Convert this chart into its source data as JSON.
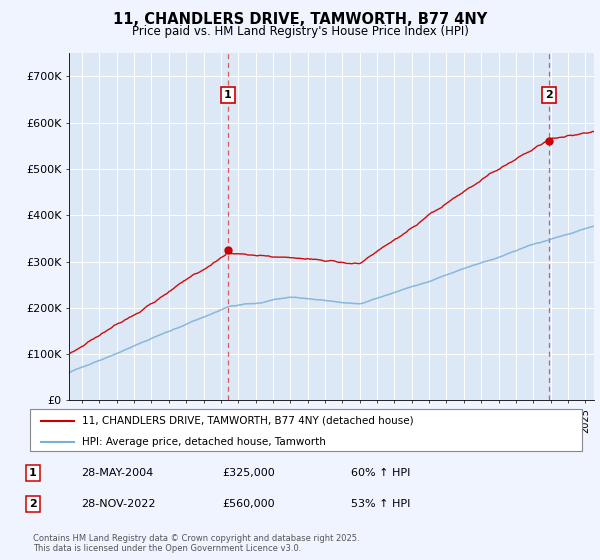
{
  "title": "11, CHANDLERS DRIVE, TAMWORTH, B77 4NY",
  "subtitle": "Price paid vs. HM Land Registry's House Price Index (HPI)",
  "ylabel_ticks": [
    "£0",
    "£100K",
    "£200K",
    "£300K",
    "£400K",
    "£500K",
    "£600K",
    "£700K"
  ],
  "ytick_vals": [
    0,
    100000,
    200000,
    300000,
    400000,
    500000,
    600000,
    700000
  ],
  "ylim": [
    0,
    750000
  ],
  "xlim_start": 1995.25,
  "xlim_end": 2025.5,
  "marker1_x": 2004.41,
  "marker1_y": 325000,
  "marker1_label": "1",
  "marker2_x": 2022.91,
  "marker2_y": 560000,
  "marker2_label": "2",
  "red_color": "#cc0000",
  "blue_color": "#7bafd4",
  "dashed_line_color": "#cc0000",
  "background_color": "#f0f4ff",
  "legend_line1": "11, CHANDLERS DRIVE, TAMWORTH, B77 4NY (detached house)",
  "legend_line2": "HPI: Average price, detached house, Tamworth",
  "table_row1": [
    "1",
    "28-MAY-2004",
    "£325,000",
    "60% ↑ HPI"
  ],
  "table_row2": [
    "2",
    "28-NOV-2022",
    "£560,000",
    "53% ↑ HPI"
  ],
  "footer": "Contains HM Land Registry data © Crown copyright and database right 2025.\nThis data is licensed under the Open Government Licence v3.0.",
  "grid_color": "#ffffff",
  "plot_bg": "#dce8f5"
}
